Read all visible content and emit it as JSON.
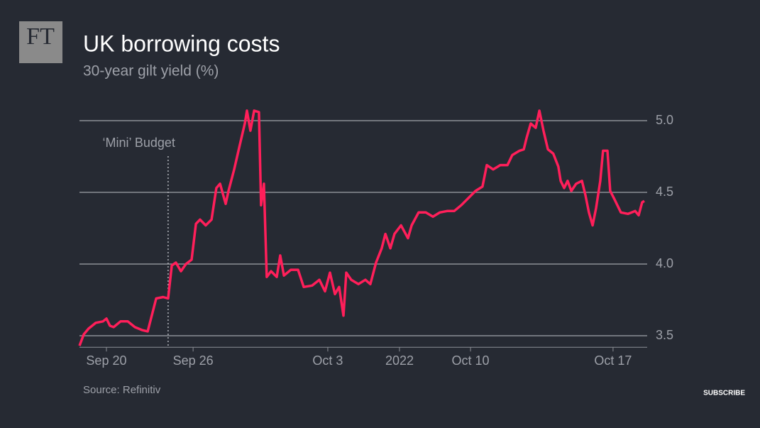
{
  "logo": "FT",
  "subscribe": "SUBSCRIBE",
  "chart_data": {
    "type": "line",
    "title": "UK borrowing costs",
    "subtitle": "30-year gilt yield (%)",
    "source": "Source: Refinitiv",
    "color": "#ff1f5a",
    "grid": true,
    "annotation": {
      "label": "‘Mini’ Budget",
      "x": 4.08
    },
    "x": [
      0,
      0.2,
      0.42,
      0.75,
      1.08,
      1.24,
      1.4,
      1.57,
      1.89,
      2.22,
      2.55,
      2.87,
      3.14,
      3.36,
      3.53,
      3.85,
      4.08,
      4.25,
      4.44,
      4.67,
      4.9,
      5.16,
      5.36,
      5.55,
      5.81,
      6.08,
      6.3,
      6.47,
      6.73,
      6.86,
      7.12,
      7.38,
      7.61,
      7.71,
      7.87,
      8.04,
      8.26,
      8.36,
      8.49,
      8.62,
      8.82,
      9.08,
      9.24,
      9.41,
      9.73,
      10.06,
      10.32,
      10.71,
      11.04,
      11.3,
      11.53,
      11.76,
      11.95,
      12.15,
      12.28,
      12.51,
      12.84,
      13.16,
      13.39,
      13.65,
      13.91,
      14.08,
      14.31,
      14.5,
      14.8,
      15.12,
      15.29,
      15.61,
      15.94,
      16.27,
      16.59,
      16.92,
      17.25,
      17.57,
      17.9,
      18.23,
      18.55,
      18.75,
      19.04,
      19.37,
      19.7,
      19.92,
      20.25,
      20.45,
      20.58,
      20.77,
      21,
      21.17,
      21.36,
      21.56,
      21.81,
      22.04,
      22.15,
      22.31,
      22.47,
      22.64,
      22.86,
      23.13,
      23.29,
      23.45,
      23.62,
      23.78,
      23.97,
      24.1,
      24.3,
      24.43,
      24.63,
      24.92,
      25.25,
      25.58,
      25.74,
      25.9,
      26
    ],
    "values": [
      3.43,
      3.51,
      3.55,
      3.59,
      3.6,
      3.62,
      3.57,
      3.56,
      3.6,
      3.6,
      3.56,
      3.54,
      3.53,
      3.66,
      3.76,
      3.77,
      3.76,
      3.99,
      4.01,
      3.95,
      4.0,
      4.03,
      4.28,
      4.31,
      4.27,
      4.31,
      4.53,
      4.56,
      4.42,
      4.51,
      4.66,
      4.83,
      4.98,
      5.07,
      4.93,
      5.07,
      5.06,
      4.41,
      4.56,
      3.91,
      3.95,
      3.91,
      4.06,
      3.92,
      3.96,
      3.96,
      3.84,
      3.85,
      3.89,
      3.81,
      3.94,
      3.79,
      3.84,
      3.64,
      3.94,
      3.89,
      3.86,
      3.89,
      3.86,
      4.01,
      4.11,
      4.21,
      4.11,
      4.21,
      4.27,
      4.18,
      4.27,
      4.36,
      4.36,
      4.33,
      4.36,
      4.37,
      4.37,
      4.41,
      4.46,
      4.51,
      4.54,
      4.69,
      4.66,
      4.69,
      4.69,
      4.76,
      4.79,
      4.8,
      4.88,
      4.98,
      4.95,
      5.07,
      4.93,
      4.8,
      4.77,
      4.68,
      4.58,
      4.53,
      4.58,
      4.51,
      4.56,
      4.58,
      4.48,
      4.36,
      4.27,
      4.39,
      4.58,
      4.79,
      4.79,
      4.51,
      4.45,
      4.36,
      4.35,
      4.37,
      4.34,
      4.43,
      4.44
    ],
    "xlim": [
      0,
      26
    ],
    "xticks": [
      {
        "value": 1.24,
        "label": "Sep 20"
      },
      {
        "value": 5.23,
        "label": "Sep 26"
      },
      {
        "value": 11.43,
        "label": "Oct 3"
      },
      {
        "value": 14.73,
        "label": "2022"
      },
      {
        "value": 18.0,
        "label": "Oct 10"
      },
      {
        "value": 24.56,
        "label": "Oct 17"
      }
    ],
    "ylim": [
      3.4,
      5.1
    ],
    "yticks": [
      3.5,
      {
        "value": 4.0,
        "label": "4.0"
      },
      4.5,
      {
        "value": 5.0,
        "label": "5.0"
      }
    ]
  }
}
